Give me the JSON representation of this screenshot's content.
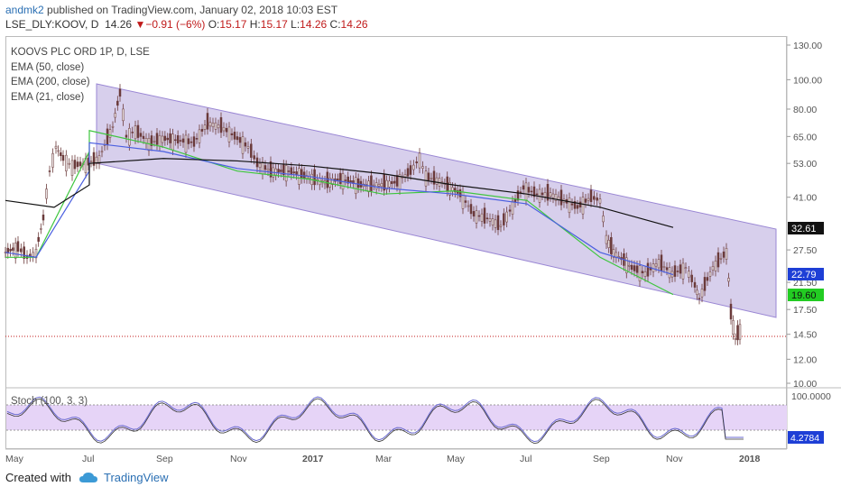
{
  "header": {
    "user": "andmk2",
    "published": " published on TradingView.com, January 02, 2018 10:03 EST",
    "symbol": "LSE_DLY:KOOV, D",
    "last": "14.26",
    "change_arrow": "▼",
    "change": "−0.91 (−6%)",
    "o_label": "O:",
    "o_val": "15.17",
    "h_label": "H:",
    "h_val": "15.17",
    "l_label": "L:",
    "l_val": "14.26",
    "c_label": "C:",
    "c_val": "14.26"
  },
  "legend": {
    "title": "KOOVS PLC ORD 1P, D, LSE",
    "ema50": "EMA (50, close)",
    "ema200": "EMA (200, close)",
    "ema21": "EMA (21, close)"
  },
  "stoch": {
    "label": "Stoch (100, 3, 3)",
    "top_tick": "100.0000",
    "value": "4.2784"
  },
  "price_ticks": [
    "130.00",
    "100.00",
    "80.00",
    "65.00",
    "53.00",
    "41.00",
    "27.50",
    "21.50",
    "17.50",
    "14.50",
    "12.00",
    "10.00"
  ],
  "badges": {
    "ema200": {
      "text": "32.61",
      "color": "#111111"
    },
    "ema50": {
      "text": "22.79",
      "color": "#1e3fd6"
    },
    "ema21": {
      "text": "19.60",
      "color": "#22cc22"
    }
  },
  "time_axis": [
    "May",
    "Jul",
    "Sep",
    "Nov",
    "2017",
    "Mar",
    "May",
    "Jul",
    "Sep",
    "Nov",
    "2018"
  ],
  "footer": {
    "created": "Created with",
    "brand": "TradingView"
  },
  "colors": {
    "channel_fill": "#c9bfe6",
    "channel_line": "#9a87d4",
    "ema21": "#3ec63e",
    "ema50": "#4a5fe0",
    "ema200": "#111111",
    "candles": "#6b3a3a",
    "stoch_band": "#e6d4f7",
    "stoch_line": "#6a6ad0",
    "price_line": "#c01a1a"
  },
  "chart_data": {
    "type": "line",
    "title": "KOOVS PLC ORD 1P, D, LSE",
    "x": [
      "May",
      "Jul",
      "Sep",
      "Nov",
      "2017",
      "Mar",
      "May",
      "Jul",
      "Sep",
      "Nov",
      "2018"
    ],
    "series": [
      {
        "name": "EMA (200, close)",
        "values": [
          41,
          48,
          53,
          55,
          54,
          52,
          49,
          45,
          42,
          38,
          32.61
        ]
      },
      {
        "name": "EMA (50, close)",
        "values": [
          28,
          50,
          62,
          58,
          51,
          48,
          44,
          42,
          39,
          27,
          22.79
        ]
      },
      {
        "name": "EMA (21, close)",
        "values": [
          27,
          58,
          68,
          60,
          50,
          47,
          42,
          43,
          40,
          26,
          19.6
        ]
      }
    ],
    "last_price": 14.26
  }
}
